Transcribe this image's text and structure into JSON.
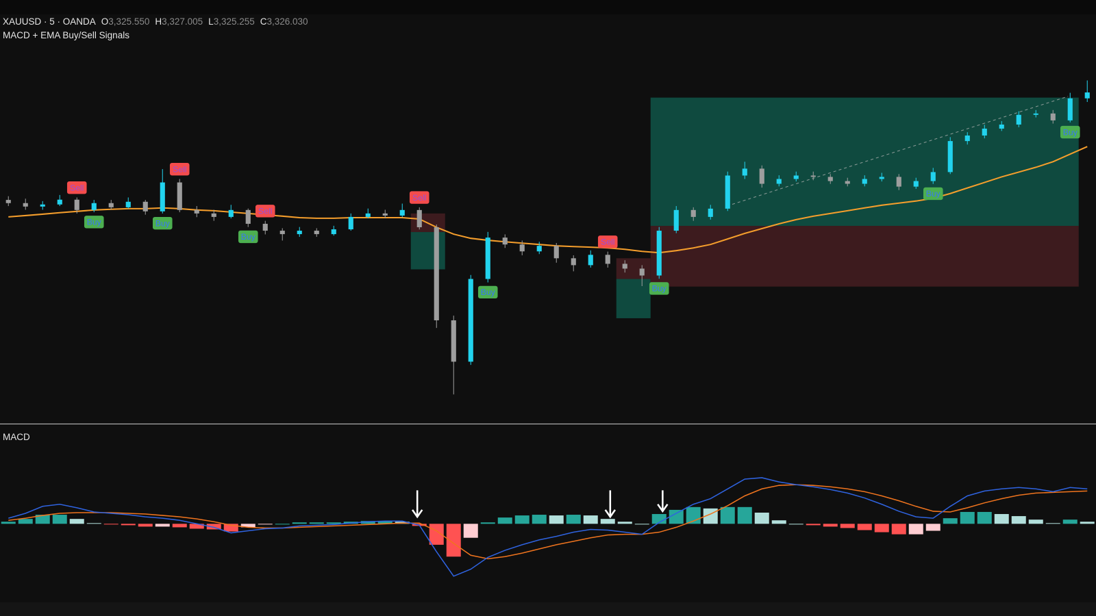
{
  "header": {
    "symbol": "XAUUSD · 5 · OANDA",
    "ohlc": [
      {
        "key": "O",
        "value": "3,325.550"
      },
      {
        "key": "H",
        "value": "3,327.005"
      },
      {
        "key": "L",
        "value": "3,325.255"
      },
      {
        "key": "C",
        "value": "3,326.030"
      }
    ],
    "indicator": "MACD + EMA Buy/Sell Signals"
  },
  "chart_data": [
    {
      "type": "candlestick",
      "ylim": [
        3299.5,
        3329
      ],
      "up_color": "#22d3ee",
      "down_color": "#9e9e9e",
      "ema_color": "#f59e2c",
      "open": [
        3317.3,
        3317.04,
        3316.76,
        3316.93,
        3317.32,
        3316.48,
        3317.04,
        3316.7,
        3317.15,
        3316.37,
        3318.72,
        3316.48,
        3316.2,
        3315.92,
        3316.48,
        3315.36,
        3314.8,
        3314.52,
        3314.8,
        3314.52,
        3314.91,
        3315.92,
        3316.2,
        3316.03,
        3316.48,
        3315.08,
        3307.52,
        3304.16,
        3310.88,
        3314.24,
        3313.68,
        3313.12,
        3313.57,
        3312.56,
        3312.0,
        3312.84,
        3312.11,
        3311.72,
        3311.16,
        3314.8,
        3316.48,
        3315.92,
        3316.59,
        3319.28,
        3319.84,
        3318.61,
        3319.0,
        3319.28,
        3319.17,
        3318.83,
        3318.61,
        3319.0,
        3319.17,
        3318.38,
        3318.83,
        3319.56,
        3322.08,
        3322.53,
        3323.09,
        3323.42,
        3324.21,
        3324.32,
        3323.76,
        3325.55
      ],
      "high": [
        3317.6,
        3317.4,
        3317.2,
        3317.7,
        3317.5,
        3317.3,
        3317.3,
        3317.5,
        3317.3,
        3319.8,
        3319.0,
        3316.8,
        3316.5,
        3316.9,
        3316.6,
        3315.6,
        3315.0,
        3315.1,
        3315.0,
        3315.2,
        3316.2,
        3316.6,
        3316.5,
        3317.0,
        3316.7,
        3315.3,
        3307.9,
        3311.2,
        3314.7,
        3314.5,
        3314.0,
        3313.9,
        3313.8,
        3312.8,
        3313.2,
        3313.1,
        3312.4,
        3312.0,
        3315.1,
        3316.8,
        3316.7,
        3316.9,
        3319.6,
        3320.4,
        3320.1,
        3319.3,
        3319.6,
        3319.6,
        3319.4,
        3319.1,
        3319.3,
        3319.5,
        3319.4,
        3319.1,
        3319.9,
        3322.4,
        3322.8,
        3323.4,
        3323.7,
        3324.5,
        3324.6,
        3324.6,
        3326.0,
        3327.005
      ],
      "low": [
        3316.8,
        3316.5,
        3316.5,
        3316.8,
        3316.2,
        3316.3,
        3316.5,
        3316.6,
        3316.1,
        3316.2,
        3316.3,
        3315.9,
        3315.6,
        3315.8,
        3315.1,
        3314.5,
        3314.0,
        3314.3,
        3314.3,
        3314.4,
        3314.8,
        3315.8,
        3315.8,
        3315.9,
        3314.9,
        3306.9,
        3301.5,
        3303.9,
        3310.6,
        3313.4,
        3312.8,
        3312.9,
        3312.2,
        3311.5,
        3311.8,
        3311.8,
        3311.4,
        3310.3,
        3310.9,
        3314.6,
        3315.6,
        3315.7,
        3316.4,
        3319.0,
        3318.3,
        3318.4,
        3318.8,
        3318.9,
        3318.6,
        3318.4,
        3318.4,
        3318.8,
        3318.1,
        3318.2,
        3318.6,
        3319.4,
        3321.8,
        3322.3,
        3322.9,
        3323.2,
        3324.0,
        3323.5,
        3323.6,
        3325.255
      ],
      "close": [
        3317.04,
        3316.76,
        3316.93,
        3317.32,
        3316.48,
        3317.04,
        3316.7,
        3317.15,
        3316.37,
        3318.72,
        3316.48,
        3316.2,
        3315.92,
        3316.48,
        3315.36,
        3314.8,
        3314.52,
        3314.8,
        3314.52,
        3314.91,
        3315.92,
        3316.2,
        3316.03,
        3316.48,
        3315.08,
        3307.52,
        3304.16,
        3310.88,
        3314.24,
        3313.68,
        3313.12,
        3313.57,
        3312.56,
        3312.0,
        3312.84,
        3312.11,
        3311.72,
        3311.16,
        3314.8,
        3316.48,
        3315.92,
        3316.59,
        3319.28,
        3319.84,
        3318.61,
        3319.0,
        3319.28,
        3319.17,
        3318.83,
        3318.61,
        3319.0,
        3319.17,
        3318.38,
        3318.83,
        3319.56,
        3322.08,
        3322.53,
        3323.09,
        3323.42,
        3324.21,
        3324.32,
        3323.76,
        3325.55,
        3326.03
      ],
      "ema": [
        3315.92,
        3316.03,
        3316.14,
        3316.26,
        3316.37,
        3316.48,
        3316.54,
        3316.59,
        3316.59,
        3316.65,
        3316.59,
        3316.48,
        3316.42,
        3316.31,
        3316.2,
        3316.09,
        3315.98,
        3315.86,
        3315.81,
        3315.81,
        3315.86,
        3315.86,
        3315.86,
        3315.86,
        3315.75,
        3315.08,
        3314.52,
        3314.18,
        3314.02,
        3313.9,
        3313.79,
        3313.68,
        3313.57,
        3313.51,
        3313.46,
        3313.4,
        3313.29,
        3313.12,
        3313.01,
        3313.18,
        3313.4,
        3313.68,
        3314.13,
        3314.58,
        3314.97,
        3315.36,
        3315.7,
        3315.98,
        3316.2,
        3316.42,
        3316.65,
        3316.87,
        3317.04,
        3317.21,
        3317.43,
        3317.82,
        3318.27,
        3318.72,
        3319.17,
        3319.56,
        3319.95,
        3320.4,
        3321.02,
        3321.63
      ],
      "signals": [
        null,
        null,
        null,
        null,
        "Sell",
        "Buy",
        null,
        null,
        null,
        "Buy",
        "Sell",
        null,
        null,
        null,
        "Buy",
        "Sell",
        null,
        null,
        null,
        null,
        null,
        null,
        null,
        null,
        "Sell",
        null,
        null,
        null,
        "Buy",
        null,
        null,
        null,
        null,
        null,
        null,
        "Sell",
        null,
        null,
        "Buy",
        null,
        null,
        null,
        null,
        null,
        null,
        null,
        null,
        null,
        null,
        null,
        null,
        null,
        null,
        null,
        "Buy",
        null,
        null,
        null,
        null,
        null,
        null,
        null,
        "Buy",
        null
      ],
      "signal_colors": {
        "Buy": "#4caf50",
        "Sell": "#f44c4c"
      },
      "signal_text_colors": {
        "Buy": "#3a78f2",
        "Sell": "#9c4fd6"
      },
      "positions": [
        {
          "from": 24,
          "to": 25,
          "entry": 3314.69,
          "target": 3311.66,
          "stop": 3316.2
        },
        {
          "from": 36,
          "to": 37,
          "entry": 3310.88,
          "target": 3307.69,
          "stop": 3312.56
        },
        {
          "from": 38,
          "to": 62,
          "entry": 3315.19,
          "target": 3325.61,
          "stop": 3310.26
        }
      ],
      "target_color": "#0f4a3f",
      "stop_color": "#3d1b1e"
    },
    {
      "type": "macd",
      "title": "MACD",
      "ylim": [
        -5.5,
        5
      ],
      "macd_color": "#2f63e0",
      "signal_color": "#f0741e",
      "hist_colors": [
        "#26a69a",
        "#b2dfdb",
        "#ff5252",
        "#ffcdd2"
      ],
      "macd": [
        0.4,
        0.75,
        1.25,
        1.4,
        1.15,
        0.85,
        0.75,
        0.65,
        0.5,
        0.4,
        0.25,
        0.0,
        -0.25,
        -0.65,
        -0.5,
        -0.35,
        -0.3,
        -0.15,
        -0.1,
        -0.05,
        0.05,
        0.15,
        0.2,
        0.2,
        -0.1,
        -2.0,
        -3.75,
        -3.25,
        -2.4,
        -1.9,
        -1.5,
        -1.15,
        -0.9,
        -0.6,
        -0.4,
        -0.45,
        -0.6,
        -0.75,
        0.1,
        0.75,
        1.4,
        1.8,
        2.5,
        3.2,
        3.3,
        3.0,
        2.8,
        2.65,
        2.45,
        2.2,
        1.85,
        1.4,
        0.9,
        0.5,
        0.4,
        1.25,
        2.0,
        2.35,
        2.5,
        2.6,
        2.5,
        2.3,
        2.6,
        2.5
      ],
      "signal": [
        0.25,
        0.4,
        0.6,
        0.75,
        0.8,
        0.8,
        0.8,
        0.75,
        0.7,
        0.6,
        0.5,
        0.35,
        0.15,
        -0.1,
        -0.25,
        -0.3,
        -0.3,
        -0.25,
        -0.2,
        -0.15,
        -0.1,
        -0.05,
        0.0,
        0.05,
        0.05,
        -0.5,
        -1.4,
        -2.25,
        -2.5,
        -2.35,
        -2.1,
        -1.8,
        -1.5,
        -1.25,
        -1.0,
        -0.8,
        -0.75,
        -0.75,
        -0.6,
        -0.25,
        0.2,
        0.7,
        1.3,
        2.0,
        2.5,
        2.75,
        2.8,
        2.75,
        2.65,
        2.5,
        2.3,
        2.0,
        1.65,
        1.25,
        0.9,
        0.85,
        1.15,
        1.5,
        1.8,
        2.05,
        2.2,
        2.25,
        2.3,
        2.35
      ],
      "histogram": [
        0.15,
        0.35,
        0.65,
        0.65,
        0.35,
        0.05,
        -0.05,
        -0.1,
        -0.2,
        -0.2,
        -0.25,
        -0.35,
        -0.4,
        -0.55,
        -0.25,
        -0.05,
        0.0,
        0.1,
        0.1,
        0.1,
        0.15,
        0.2,
        0.2,
        0.15,
        -0.15,
        -1.5,
        -2.35,
        -1.0,
        0.1,
        0.45,
        0.6,
        0.65,
        0.6,
        0.65,
        0.6,
        0.35,
        0.15,
        0.0,
        0.7,
        1.0,
        1.2,
        1.1,
        1.2,
        1.2,
        0.8,
        0.25,
        0.0,
        -0.1,
        -0.2,
        -0.3,
        -0.45,
        -0.6,
        -0.75,
        -0.75,
        -0.5,
        0.4,
        0.85,
        0.85,
        0.7,
        0.55,
        0.3,
        0.05,
        0.3,
        0.15
      ]
    }
  ]
}
